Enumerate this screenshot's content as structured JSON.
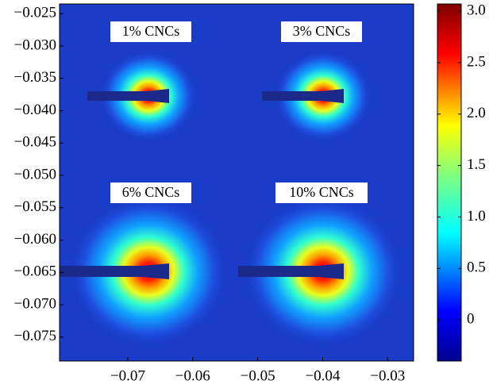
{
  "chart_data": {
    "type": "image",
    "annotations": [
      "1% CNCs",
      "3% CNCs",
      "6% CNCs",
      "10% CNCs"
    ],
    "xlim": [
      -0.0805,
      -0.026
    ],
    "ylim": [
      -0.0787,
      -0.0235
    ],
    "xticks": [
      {
        "value": -0.07,
        "label": "−0.07"
      },
      {
        "value": -0.06,
        "label": "−0.06"
      },
      {
        "value": -0.05,
        "label": "−0.05"
      },
      {
        "value": -0.04,
        "label": "−0.04"
      },
      {
        "value": -0.03,
        "label": "−0.03"
      }
    ],
    "yticks": [
      {
        "value": -0.025,
        "label": "−0.025"
      },
      {
        "value": -0.03,
        "label": "−0.030"
      },
      {
        "value": -0.035,
        "label": "−0.035"
      },
      {
        "value": -0.04,
        "label": "−0.040"
      },
      {
        "value": -0.045,
        "label": "−0.045"
      },
      {
        "value": -0.05,
        "label": "−0.050"
      },
      {
        "value": -0.055,
        "label": "−0.055"
      },
      {
        "value": -0.06,
        "label": "−0.060"
      },
      {
        "value": -0.065,
        "label": "−0.065"
      },
      {
        "value": -0.07,
        "label": "−0.070"
      },
      {
        "value": -0.075,
        "label": "−0.075"
      }
    ],
    "colorbar": {
      "lim": [
        -0.4,
        3.07
      ],
      "ticks": [
        0,
        0.5,
        {
          "value": 1,
          "label": "1.0"
        },
        1.5,
        {
          "value": 2,
          "label": "2.0"
        },
        2.5,
        {
          "value": 3,
          "label": "3.0"
        }
      ]
    }
  }
}
